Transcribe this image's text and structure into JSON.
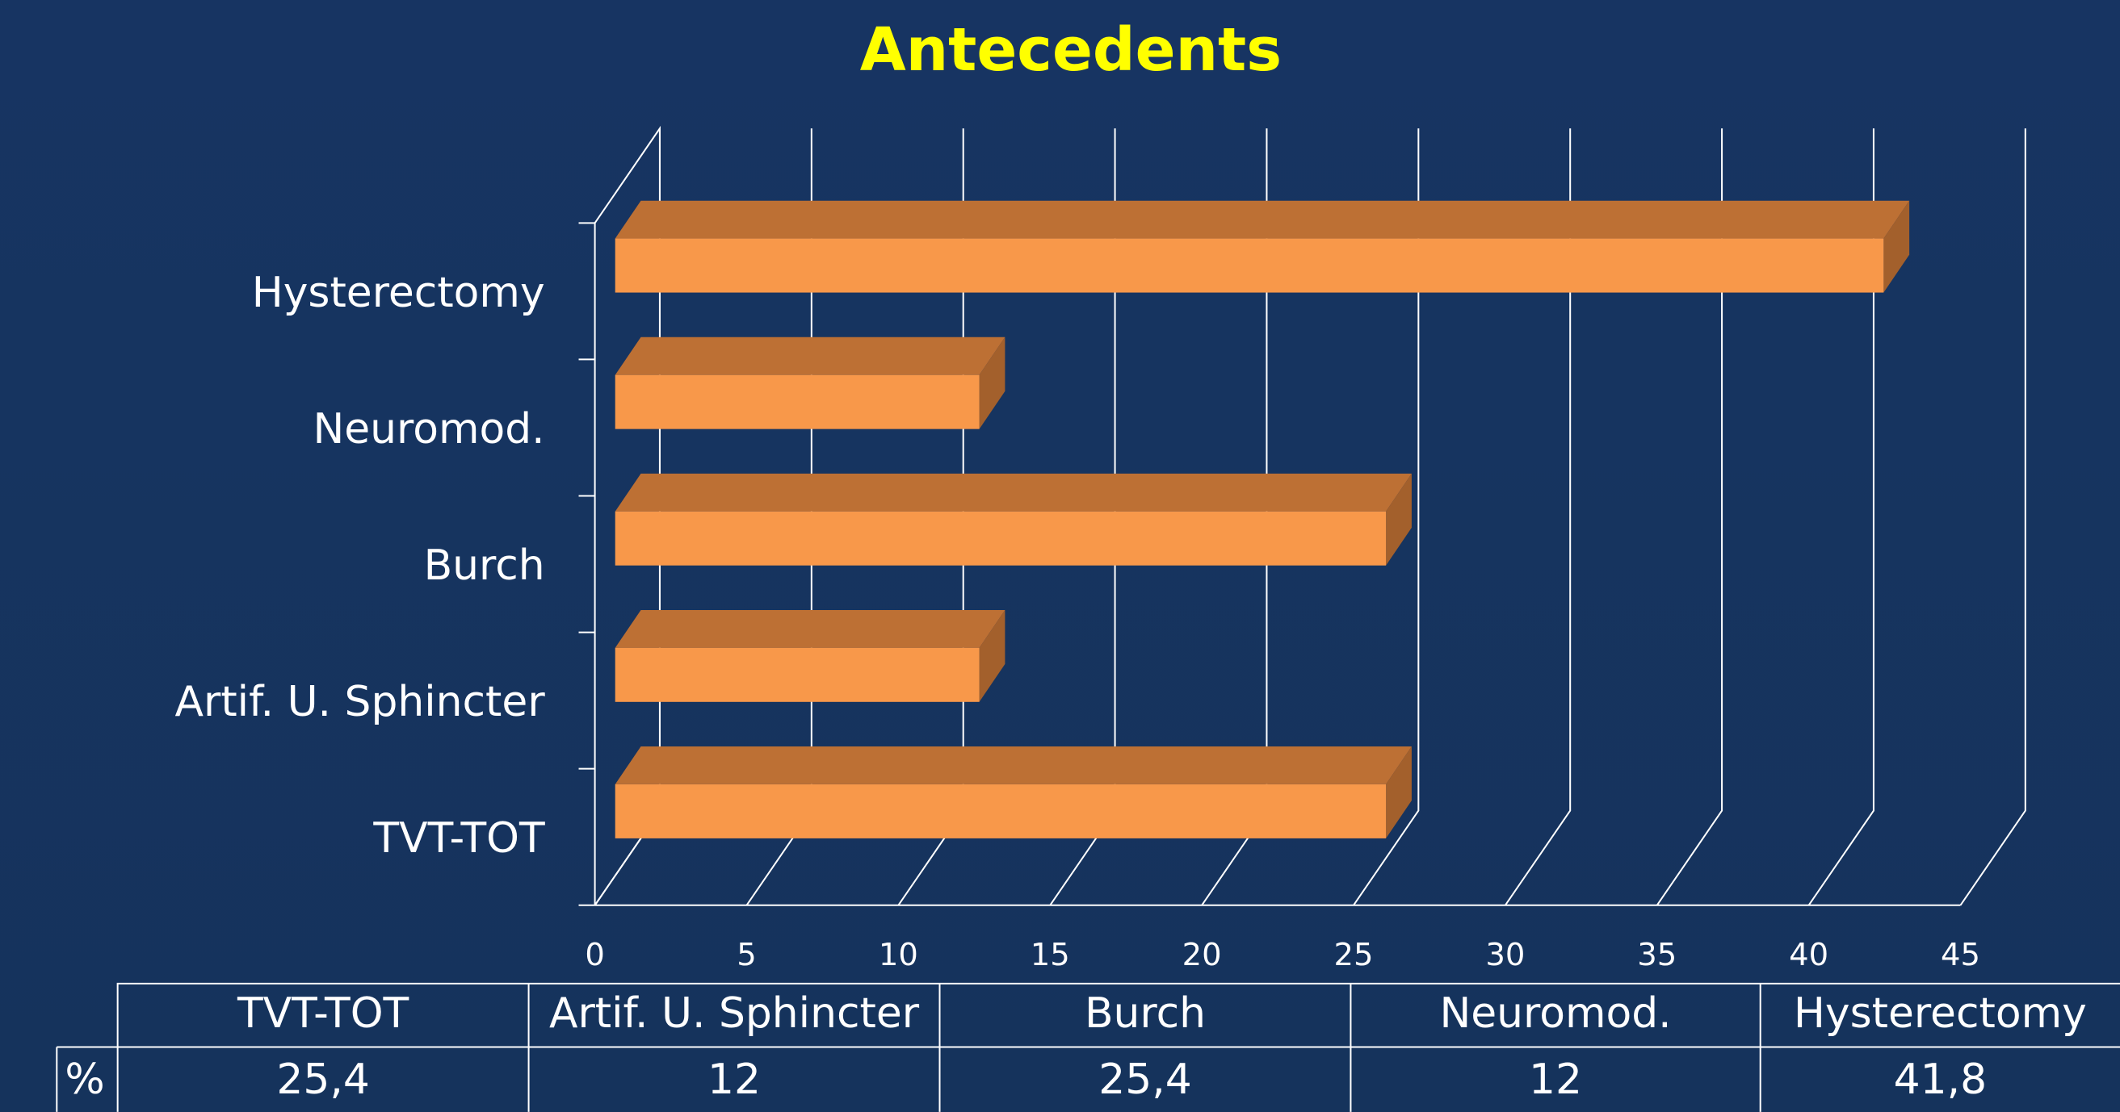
{
  "chart_data": {
    "type": "bar3d_horizontal",
    "title": "Antecedents",
    "categories": [
      "TVT-TOT",
      "Artif. U. Sphincter",
      "Burch",
      "Neuromod.",
      "Hysterectomy"
    ],
    "values": [
      25.4,
      12,
      25.4,
      12,
      41.8
    ],
    "value_labels": [
      "25,4",
      "12",
      "25,4",
      "12",
      "41,8"
    ],
    "color": "#f8984a",
    "xlim": [
      0,
      45
    ],
    "xticks": [
      0,
      5,
      10,
      15,
      20,
      25,
      30,
      35,
      40,
      45
    ],
    "grid": true,
    "data_table": {
      "row_label": "%"
    }
  }
}
